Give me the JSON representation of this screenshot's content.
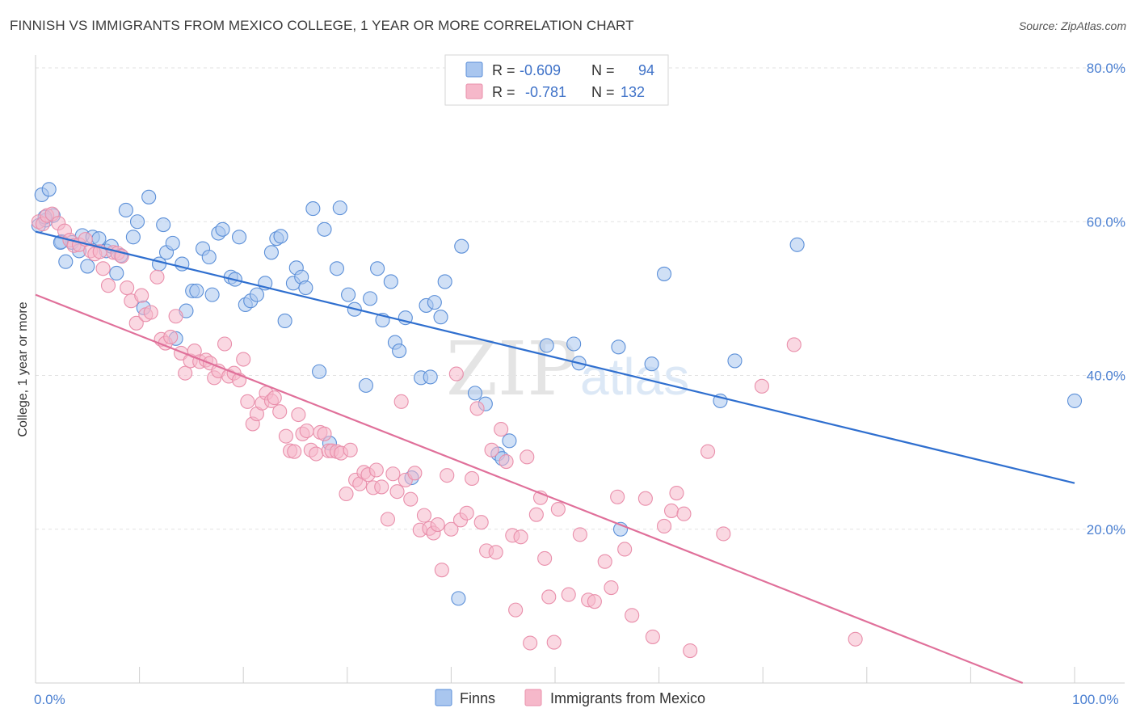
{
  "header": {
    "title": "FINNISH VS IMMIGRANTS FROM MEXICO COLLEGE, 1 YEAR OR MORE CORRELATION CHART",
    "source": "Source: ZipAtlas.com"
  },
  "watermark": {
    "zip": "ZIP",
    "atlas": "atlas"
  },
  "legend_box": {
    "rows": [
      {
        "r_label": "R =",
        "r_value": "-0.609",
        "n_label": "N =",
        "n_value": "94",
        "color": "#a9c6ef"
      },
      {
        "r_label": "R =",
        "r_value": "-0.781",
        "n_label": "N = ",
        "n_value": "132",
        "color": "#f6b8ca"
      }
    ]
  },
  "chart_data": {
    "type": "scatter",
    "title": "FINNISH VS IMMIGRANTS FROM MEXICO COLLEGE, 1 YEAR OR MORE CORRELATION CHART",
    "xlabel": "",
    "ylabel": "College, 1 year or more",
    "xlim": [
      0,
      100
    ],
    "ylim": [
      0,
      82
    ],
    "x_tick_labels": [
      "0.0%",
      "100.0%"
    ],
    "y_ticks": [
      20,
      40,
      60,
      80
    ],
    "y_tick_labels": [
      "20.0%",
      "40.0%",
      "60.0%",
      "80.0%"
    ],
    "grid": "horizontal dashed",
    "legend_placement": "top-center",
    "series": [
      {
        "name": "Finns",
        "color": "#5b8fd8",
        "fill": "#a9c6ef",
        "trend": {
          "x": [
            0,
            100
          ],
          "y": [
            58.7,
            26.0
          ],
          "color": "#2f6fcf"
        },
        "points": [
          [
            0.3,
            59.5
          ],
          [
            0.6,
            63.5
          ],
          [
            1.3,
            64.2
          ],
          [
            1.7,
            60.8
          ],
          [
            1.0,
            60.2
          ],
          [
            2.5,
            57.4
          ],
          [
            2.9,
            54.8
          ],
          [
            3.5,
            57.3
          ],
          [
            4.2,
            56.2
          ],
          [
            4.5,
            58.2
          ],
          [
            5.0,
            54.2
          ],
          [
            5.5,
            58.0
          ],
          [
            6.1,
            57.8
          ],
          [
            6.8,
            56.2
          ],
          [
            7.3,
            56.8
          ],
          [
            7.8,
            53.3
          ],
          [
            8.2,
            55.6
          ],
          [
            8.7,
            61.5
          ],
          [
            9.4,
            58.0
          ],
          [
            9.8,
            60.0
          ],
          [
            10.4,
            48.8
          ],
          [
            10.9,
            63.2
          ],
          [
            11.9,
            54.5
          ],
          [
            12.3,
            59.6
          ],
          [
            12.6,
            56.0
          ],
          [
            13.2,
            57.2
          ],
          [
            13.5,
            44.8
          ],
          [
            14.1,
            54.5
          ],
          [
            14.5,
            48.4
          ],
          [
            15.1,
            51.0
          ],
          [
            15.5,
            51.0
          ],
          [
            16.1,
            56.5
          ],
          [
            16.7,
            55.4
          ],
          [
            17.0,
            50.5
          ],
          [
            17.6,
            58.5
          ],
          [
            18.0,
            59.0
          ],
          [
            18.8,
            52.8
          ],
          [
            19.2,
            52.5
          ],
          [
            19.6,
            58.0
          ],
          [
            20.2,
            49.2
          ],
          [
            20.7,
            49.7
          ],
          [
            21.3,
            50.5
          ],
          [
            22.1,
            52.0
          ],
          [
            22.7,
            56.0
          ],
          [
            23.2,
            57.8
          ],
          [
            23.6,
            58.1
          ],
          [
            24.0,
            47.1
          ],
          [
            24.8,
            52.0
          ],
          [
            25.1,
            54.0
          ],
          [
            25.6,
            52.8
          ],
          [
            26.0,
            51.4
          ],
          [
            26.7,
            61.7
          ],
          [
            27.3,
            40.5
          ],
          [
            27.8,
            59.0
          ],
          [
            28.3,
            31.2
          ],
          [
            29.0,
            53.9
          ],
          [
            29.3,
            61.8
          ],
          [
            30.1,
            50.5
          ],
          [
            30.7,
            48.6
          ],
          [
            31.8,
            38.7
          ],
          [
            32.2,
            50.0
          ],
          [
            32.9,
            53.9
          ],
          [
            33.4,
            47.2
          ],
          [
            34.2,
            52.2
          ],
          [
            34.6,
            44.3
          ],
          [
            35.0,
            43.2
          ],
          [
            35.6,
            47.5
          ],
          [
            36.2,
            26.7
          ],
          [
            37.1,
            39.7
          ],
          [
            37.6,
            49.1
          ],
          [
            38.0,
            39.8
          ],
          [
            38.4,
            49.5
          ],
          [
            39.0,
            47.6
          ],
          [
            39.4,
            52.2
          ],
          [
            40.7,
            11.0
          ],
          [
            41.0,
            56.8
          ],
          [
            42.3,
            37.7
          ],
          [
            43.3,
            36.3
          ],
          [
            44.5,
            29.8
          ],
          [
            44.9,
            29.2
          ],
          [
            45.6,
            31.5
          ],
          [
            49.2,
            43.9
          ],
          [
            51.8,
            44.1
          ],
          [
            52.3,
            41.6
          ],
          [
            56.1,
            43.7
          ],
          [
            56.3,
            20.0
          ],
          [
            59.3,
            41.5
          ],
          [
            60.5,
            53.2
          ],
          [
            65.9,
            36.7
          ],
          [
            67.3,
            41.9
          ],
          [
            73.3,
            57.0
          ],
          [
            100.0,
            36.7
          ],
          [
            0.9,
            60.6
          ],
          [
            2.4,
            57.3
          ]
        ]
      },
      {
        "name": "Immigrants from Mexico",
        "color": "#e98fab",
        "fill": "#f6b8ca",
        "trend": {
          "x": [
            0,
            95
          ],
          "y": [
            50.5,
            0.0
          ],
          "color": "#e0709a"
        },
        "points": [
          [
            0.3,
            60.0
          ],
          [
            0.7,
            59.7
          ],
          [
            1.1,
            60.8
          ],
          [
            1.6,
            61.0
          ],
          [
            2.2,
            59.8
          ],
          [
            2.8,
            58.8
          ],
          [
            3.3,
            57.6
          ],
          [
            3.7,
            56.9
          ],
          [
            4.2,
            57.0
          ],
          [
            4.8,
            57.7
          ],
          [
            5.3,
            56.2
          ],
          [
            5.7,
            55.8
          ],
          [
            6.2,
            56.1
          ],
          [
            6.5,
            53.9
          ],
          [
            7.0,
            51.7
          ],
          [
            7.5,
            56.0
          ],
          [
            7.9,
            55.9
          ],
          [
            8.3,
            55.5
          ],
          [
            8.8,
            51.4
          ],
          [
            9.2,
            49.7
          ],
          [
            9.7,
            46.8
          ],
          [
            10.2,
            50.4
          ],
          [
            10.6,
            47.9
          ],
          [
            11.1,
            48.2
          ],
          [
            11.7,
            52.8
          ],
          [
            12.1,
            44.7
          ],
          [
            12.5,
            44.2
          ],
          [
            13.0,
            45.0
          ],
          [
            13.5,
            47.7
          ],
          [
            14.0,
            42.9
          ],
          [
            14.4,
            40.3
          ],
          [
            14.9,
            41.9
          ],
          [
            15.3,
            43.2
          ],
          [
            15.8,
            41.8
          ],
          [
            16.4,
            42.0
          ],
          [
            16.8,
            41.6
          ],
          [
            17.2,
            39.7
          ],
          [
            17.6,
            40.6
          ],
          [
            18.2,
            44.1
          ],
          [
            18.6,
            39.9
          ],
          [
            19.1,
            40.3
          ],
          [
            19.6,
            39.4
          ],
          [
            20.0,
            42.1
          ],
          [
            20.4,
            36.6
          ],
          [
            20.9,
            33.7
          ],
          [
            21.3,
            35.0
          ],
          [
            21.8,
            36.4
          ],
          [
            22.2,
            37.7
          ],
          [
            22.7,
            36.7
          ],
          [
            23.0,
            37.1
          ],
          [
            23.5,
            35.3
          ],
          [
            24.1,
            32.1
          ],
          [
            24.5,
            30.2
          ],
          [
            24.9,
            30.1
          ],
          [
            25.3,
            34.9
          ],
          [
            25.7,
            32.4
          ],
          [
            26.1,
            32.8
          ],
          [
            26.5,
            30.3
          ],
          [
            27.0,
            29.8
          ],
          [
            27.4,
            32.6
          ],
          [
            27.8,
            32.4
          ],
          [
            28.2,
            30.2
          ],
          [
            28.5,
            30.2
          ],
          [
            29.0,
            30.1
          ],
          [
            29.4,
            29.9
          ],
          [
            29.9,
            24.6
          ],
          [
            30.3,
            30.3
          ],
          [
            30.8,
            26.4
          ],
          [
            31.2,
            25.9
          ],
          [
            31.6,
            27.4
          ],
          [
            32.0,
            27.1
          ],
          [
            32.5,
            25.4
          ],
          [
            32.8,
            27.7
          ],
          [
            33.3,
            25.5
          ],
          [
            33.9,
            21.3
          ],
          [
            34.4,
            27.2
          ],
          [
            34.8,
            24.9
          ],
          [
            35.2,
            36.6
          ],
          [
            35.6,
            26.4
          ],
          [
            36.1,
            23.9
          ],
          [
            36.5,
            27.3
          ],
          [
            37.0,
            19.9
          ],
          [
            37.4,
            21.8
          ],
          [
            37.9,
            20.1
          ],
          [
            38.3,
            19.5
          ],
          [
            38.7,
            20.6
          ],
          [
            39.1,
            14.7
          ],
          [
            39.6,
            27.0
          ],
          [
            40.0,
            20.0
          ],
          [
            40.5,
            40.2
          ],
          [
            40.9,
            21.2
          ],
          [
            41.5,
            22.1
          ],
          [
            42.0,
            26.6
          ],
          [
            42.5,
            35.7
          ],
          [
            42.9,
            20.9
          ],
          [
            43.4,
            17.2
          ],
          [
            43.9,
            30.3
          ],
          [
            44.3,
            17.0
          ],
          [
            44.8,
            33.0
          ],
          [
            45.3,
            28.8
          ],
          [
            45.9,
            19.2
          ],
          [
            46.2,
            9.5
          ],
          [
            46.7,
            19.0
          ],
          [
            47.3,
            29.4
          ],
          [
            47.6,
            5.2
          ],
          [
            48.2,
            21.9
          ],
          [
            48.6,
            24.1
          ],
          [
            49.0,
            16.2
          ],
          [
            49.4,
            11.2
          ],
          [
            49.9,
            5.3
          ],
          [
            50.3,
            22.6
          ],
          [
            51.3,
            11.5
          ],
          [
            52.4,
            19.3
          ],
          [
            53.2,
            10.8
          ],
          [
            53.8,
            10.6
          ],
          [
            54.8,
            15.8
          ],
          [
            55.4,
            12.4
          ],
          [
            56.0,
            24.2
          ],
          [
            56.7,
            17.4
          ],
          [
            57.4,
            8.8
          ],
          [
            58.7,
            24.0
          ],
          [
            59.4,
            6.0
          ],
          [
            60.5,
            20.4
          ],
          [
            61.2,
            22.4
          ],
          [
            61.7,
            24.7
          ],
          [
            62.4,
            22.0
          ],
          [
            63.0,
            4.2
          ],
          [
            64.7,
            30.1
          ],
          [
            66.2,
            19.4
          ],
          [
            69.9,
            38.6
          ],
          [
            73.0,
            44.0
          ],
          [
            78.9,
            5.7
          ]
        ]
      }
    ]
  },
  "bottom_legend": {
    "items": [
      {
        "label": "Finns",
        "color": "#a9c6ef",
        "stroke": "#5b8fd8"
      },
      {
        "label": "Immigrants from Mexico",
        "color": "#f6b8ca",
        "stroke": "#e98fab"
      }
    ]
  }
}
